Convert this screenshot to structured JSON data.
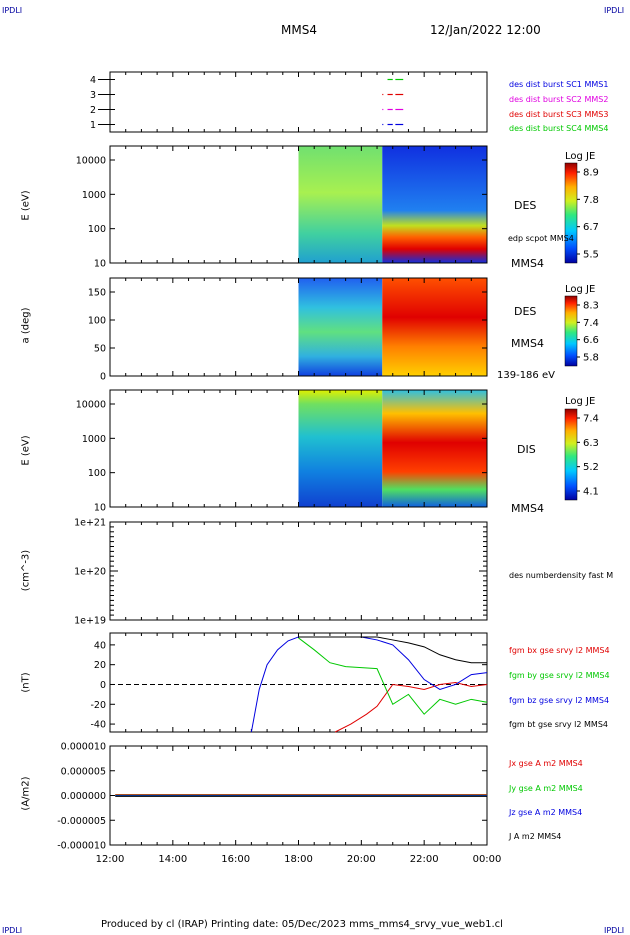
{
  "corners": {
    "tl": "IPDLI",
    "tr": "IPDLI",
    "bl": "IPDLI",
    "br": "IPDLI"
  },
  "header": {
    "spacecraft": "MMS4",
    "datetime": "12/Jan/2022 12:00"
  },
  "footer": {
    "text": "Produced by cl (IRAP)   Printing date: 05/Dec/2023   mms_mms4_srvy_vue_web1.cl"
  },
  "colors": {
    "red": "#e00000",
    "green": "#00c800",
    "blue": "#0000e0",
    "magenta": "#e000e0",
    "black": "#000000"
  },
  "chart_data": [
    {
      "type": "line",
      "panel": "burst-availability",
      "ylim": [
        0.5,
        4.5
      ],
      "ytick_labels": [
        "4",
        "3",
        "2",
        "1"
      ],
      "series": [
        {
          "name": "des dist burst SC1 MMS1",
          "color": "#0000e0",
          "level": 1,
          "segments": [
            [
              "20:40",
              "20:42"
            ],
            [
              "20:50",
              "21:00"
            ],
            [
              "21:05",
              "21:20"
            ]
          ]
        },
        {
          "name": "des dist burst SC2 MMS2",
          "color": "#e000e0",
          "level": 2,
          "segments": [
            [
              "20:40",
              "20:42"
            ],
            [
              "20:50",
              "21:00"
            ],
            [
              "21:05",
              "21:20"
            ]
          ]
        },
        {
          "name": "des dist burst SC3 MMS3",
          "color": "#e00000",
          "level": 3,
          "segments": [
            [
              "20:40",
              "20:42"
            ],
            [
              "20:50",
              "21:00"
            ],
            [
              "21:05",
              "21:20"
            ]
          ]
        },
        {
          "name": "des dist burst SC4 MMS4",
          "color": "#00c800",
          "level": 4,
          "segments": [
            [
              "20:50",
              "21:00"
            ],
            [
              "21:05",
              "21:20"
            ]
          ]
        }
      ]
    },
    {
      "type": "heatmap",
      "panel": "des-energy",
      "ylabel": "E (eV)",
      "ytick_labels": [
        "10000",
        "1000",
        "100",
        "10"
      ],
      "side_label": "DES",
      "side_sublabel": "edp scpot MMS4",
      "bottom_right": "MMS4",
      "colorbar": {
        "title": "Log JE",
        "ticks": [
          "8.9",
          "7.8",
          "6.7",
          "5.5"
        ]
      },
      "data_start": "18:00"
    },
    {
      "type": "heatmap",
      "panel": "des-pitch",
      "ylabel": "a (deg)",
      "ytick_labels": [
        "150",
        "100",
        "50",
        "0"
      ],
      "side_label": "DES",
      "side_sublabel": "MMS4",
      "bottom_right": "139-186 eV",
      "colorbar": {
        "title": "Log JE",
        "ticks": [
          "8.3",
          "7.4",
          "6.6",
          "5.8"
        ]
      },
      "data_start": "18:00"
    },
    {
      "type": "heatmap",
      "panel": "dis-energy",
      "ylabel": "E (eV)",
      "ytick_labels": [
        "10000",
        "1000",
        "100",
        "10"
      ],
      "side_label": "DIS",
      "bottom_right": "MMS4",
      "colorbar": {
        "title": "Log JE",
        "ticks": [
          "7.4",
          "6.3",
          "5.2",
          "4.1"
        ]
      },
      "data_start": "18:00"
    },
    {
      "type": "line",
      "panel": "density",
      "ylabel": "(cm^-3)",
      "ytick_labels": [
        "1e+21",
        "1e+20",
        "1e+19"
      ],
      "series": [
        {
          "name": "des numberdensity fast M",
          "color": "#000000",
          "values": []
        }
      ]
    },
    {
      "type": "line",
      "panel": "magnetic-field",
      "ylabel": "(nT)",
      "ylim": [
        -48,
        52
      ],
      "ytick_labels": [
        "40",
        "20",
        "0",
        "-20",
        "-40"
      ],
      "series": [
        {
          "name": "fgm bx gse srvy l2 MMS4",
          "color": "#e00000",
          "x": [
            "19:10",
            "19:40",
            "20:10",
            "20:30",
            "21:00",
            "21:30",
            "22:00",
            "22:30",
            "23:00",
            "23:30",
            "24:00"
          ],
          "values": [
            -48,
            -40,
            -30,
            -22,
            0,
            -2,
            -5,
            0,
            2,
            -2,
            0
          ]
        },
        {
          "name": "fgm by gse srvy l2 MMS4",
          "color": "#00c800",
          "x": [
            "18:00",
            "18:30",
            "19:00",
            "19:30",
            "20:00",
            "20:30",
            "21:00",
            "21:30",
            "22:00",
            "22:30",
            "23:00",
            "23:30",
            "24:00"
          ],
          "values": [
            47,
            35,
            22,
            18,
            17,
            16,
            -20,
            -10,
            -30,
            -15,
            -20,
            -15,
            -18
          ]
        },
        {
          "name": "fgm bz gse srvy l2 MMS4",
          "color": "#0000e0",
          "x": [
            "16:30",
            "16:45",
            "17:00",
            "17:20",
            "17:40",
            "18:00",
            "19:00",
            "20:00",
            "20:30",
            "21:00",
            "21:30",
            "22:00",
            "22:30",
            "23:00",
            "23:30",
            "24:00"
          ],
          "values": [
            -48,
            -5,
            20,
            35,
            44,
            48,
            48,
            48,
            45,
            40,
            25,
            5,
            -5,
            0,
            10,
            12
          ]
        },
        {
          "name": "fgm bt gse srvy l2 MMS4",
          "color": "#000000",
          "x": [
            "18:00",
            "19:00",
            "20:00",
            "20:30",
            "21:00",
            "21:30",
            "22:00",
            "22:30",
            "23:00",
            "23:30",
            "24:00"
          ],
          "values": [
            48,
            48,
            48,
            48,
            45,
            42,
            38,
            30,
            25,
            22,
            22
          ]
        }
      ]
    },
    {
      "type": "line",
      "panel": "current-density",
      "ylabel": "(A/m2)",
      "ylim": [
        -0.0001,
        0.0001
      ],
      "ytick_labels": [
        "0.000010",
        "0.000005",
        "0.000000",
        "-0.000005",
        "-0.000010"
      ],
      "xtick_labels": [
        "12:00",
        "14:00",
        "16:00",
        "18:00",
        "20:00",
        "22:00",
        "00:00"
      ],
      "series": [
        {
          "name": "Jx gse A m2 MMS4",
          "color": "#e00000",
          "values": []
        },
        {
          "name": "Jy gse A m2 MMS4",
          "color": "#00c800",
          "values": []
        },
        {
          "name": "Jz gse A m2 MMS4",
          "color": "#0000e0",
          "values": []
        },
        {
          "name": "J A m2 MMS4",
          "color": "#000000",
          "values": []
        }
      ]
    }
  ]
}
